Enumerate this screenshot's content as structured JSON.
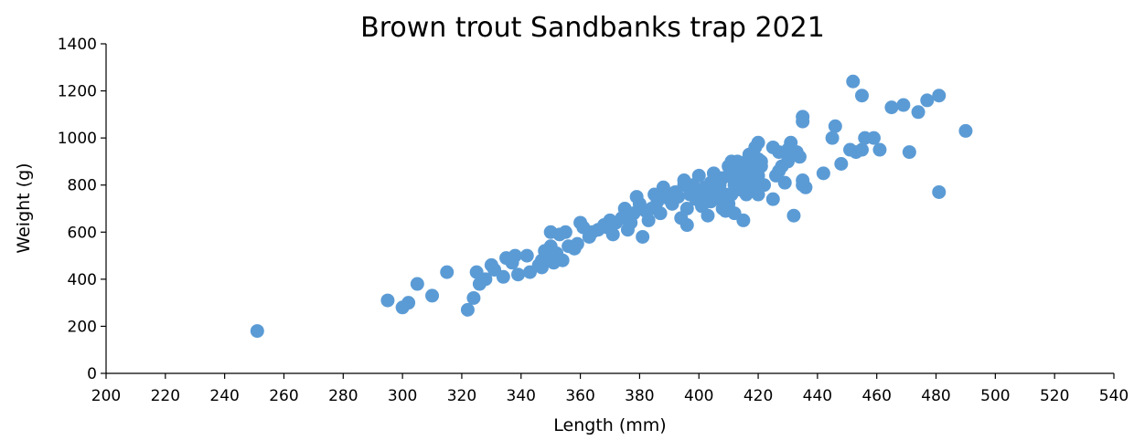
{
  "chart_data": {
    "type": "scatter",
    "title": "Brown trout Sandbanks trap 2021",
    "xlabel": "Length (mm)",
    "ylabel": "Weight (g)",
    "xlim": [
      200,
      540
    ],
    "ylim": [
      0,
      1400
    ],
    "x_ticks": [
      200,
      220,
      240,
      260,
      280,
      300,
      320,
      340,
      360,
      380,
      400,
      420,
      440,
      460,
      480,
      500,
      520,
      540
    ],
    "y_ticks": [
      0,
      200,
      400,
      600,
      800,
      1000,
      1200,
      1400
    ],
    "grid": false,
    "legend": "none",
    "color": "#5b9bd5",
    "points": [
      [
        251,
        180
      ],
      [
        295,
        310
      ],
      [
        300,
        280
      ],
      [
        302,
        300
      ],
      [
        305,
        380
      ],
      [
        310,
        330
      ],
      [
        315,
        430
      ],
      [
        322,
        270
      ],
      [
        324,
        320
      ],
      [
        325,
        430
      ],
      [
        326,
        380
      ],
      [
        328,
        400
      ],
      [
        330,
        460
      ],
      [
        331,
        440
      ],
      [
        334,
        410
      ],
      [
        335,
        490
      ],
      [
        337,
        470
      ],
      [
        338,
        500
      ],
      [
        339,
        420
      ],
      [
        342,
        500
      ],
      [
        343,
        430
      ],
      [
        346,
        460
      ],
      [
        347,
        450
      ],
      [
        347,
        480
      ],
      [
        348,
        520
      ],
      [
        349,
        500
      ],
      [
        350,
        540
      ],
      [
        350,
        600
      ],
      [
        351,
        470
      ],
      [
        352,
        510
      ],
      [
        353,
        590
      ],
      [
        354,
        480
      ],
      [
        355,
        600
      ],
      [
        356,
        540
      ],
      [
        358,
        530
      ],
      [
        359,
        550
      ],
      [
        360,
        640
      ],
      [
        361,
        620
      ],
      [
        363,
        580
      ],
      [
        364,
        600
      ],
      [
        366,
        610
      ],
      [
        368,
        630
      ],
      [
        369,
        620
      ],
      [
        370,
        650
      ],
      [
        371,
        590
      ],
      [
        372,
        640
      ],
      [
        374,
        660
      ],
      [
        375,
        700
      ],
      [
        376,
        610
      ],
      [
        377,
        640
      ],
      [
        378,
        680
      ],
      [
        379,
        750
      ],
      [
        380,
        720
      ],
      [
        381,
        580
      ],
      [
        382,
        690
      ],
      [
        383,
        650
      ],
      [
        384,
        700
      ],
      [
        385,
        760
      ],
      [
        386,
        730
      ],
      [
        387,
        680
      ],
      [
        388,
        790
      ],
      [
        389,
        760
      ],
      [
        390,
        740
      ],
      [
        391,
        720
      ],
      [
        392,
        770
      ],
      [
        393,
        750
      ],
      [
        394,
        660
      ],
      [
        395,
        800
      ],
      [
        395,
        820
      ],
      [
        396,
        630
      ],
      [
        396,
        700
      ],
      [
        397,
        760
      ],
      [
        398,
        800
      ],
      [
        399,
        740
      ],
      [
        400,
        840
      ],
      [
        400,
        780
      ],
      [
        401,
        710
      ],
      [
        401,
        750
      ],
      [
        402,
        790
      ],
      [
        403,
        670
      ],
      [
        404,
        730
      ],
      [
        404,
        810
      ],
      [
        405,
        850
      ],
      [
        405,
        760
      ],
      [
        406,
        790
      ],
      [
        407,
        740
      ],
      [
        407,
        800
      ],
      [
        408,
        830
      ],
      [
        408,
        700
      ],
      [
        409,
        690
      ],
      [
        409,
        760
      ],
      [
        410,
        880
      ],
      [
        410,
        840
      ],
      [
        410,
        720
      ],
      [
        411,
        900
      ],
      [
        411,
        760
      ],
      [
        412,
        680
      ],
      [
        412,
        800
      ],
      [
        413,
        900
      ],
      [
        413,
        850
      ],
      [
        414,
        780
      ],
      [
        415,
        650
      ],
      [
        415,
        820
      ],
      [
        415,
        870
      ],
      [
        416,
        900
      ],
      [
        416,
        760
      ],
      [
        417,
        930
      ],
      [
        417,
        800
      ],
      [
        418,
        850
      ],
      [
        418,
        880
      ],
      [
        419,
        780
      ],
      [
        419,
        960
      ],
      [
        420,
        980
      ],
      [
        420,
        910
      ],
      [
        420,
        840
      ],
      [
        420,
        810
      ],
      [
        420,
        760
      ],
      [
        421,
        880
      ],
      [
        421,
        900
      ],
      [
        422,
        800
      ],
      [
        425,
        740
      ],
      [
        425,
        960
      ],
      [
        426,
        840
      ],
      [
        427,
        860
      ],
      [
        427,
        940
      ],
      [
        428,
        880
      ],
      [
        429,
        810
      ],
      [
        430,
        900
      ],
      [
        430,
        950
      ],
      [
        431,
        980
      ],
      [
        432,
        670
      ],
      [
        433,
        940
      ],
      [
        434,
        920
      ],
      [
        435,
        1090
      ],
      [
        435,
        1070
      ],
      [
        435,
        820
      ],
      [
        435,
        800
      ],
      [
        436,
        790
      ],
      [
        442,
        850
      ],
      [
        445,
        1000
      ],
      [
        446,
        1050
      ],
      [
        448,
        890
      ],
      [
        451,
        950
      ],
      [
        452,
        1240
      ],
      [
        453,
        940
      ],
      [
        455,
        1180
      ],
      [
        455,
        950
      ],
      [
        456,
        1000
      ],
      [
        459,
        1000
      ],
      [
        461,
        950
      ],
      [
        465,
        1130
      ],
      [
        469,
        1140
      ],
      [
        471,
        940
      ],
      [
        474,
        1110
      ],
      [
        477,
        1160
      ],
      [
        481,
        1180
      ],
      [
        481,
        770
      ],
      [
        490,
        1030
      ]
    ]
  }
}
